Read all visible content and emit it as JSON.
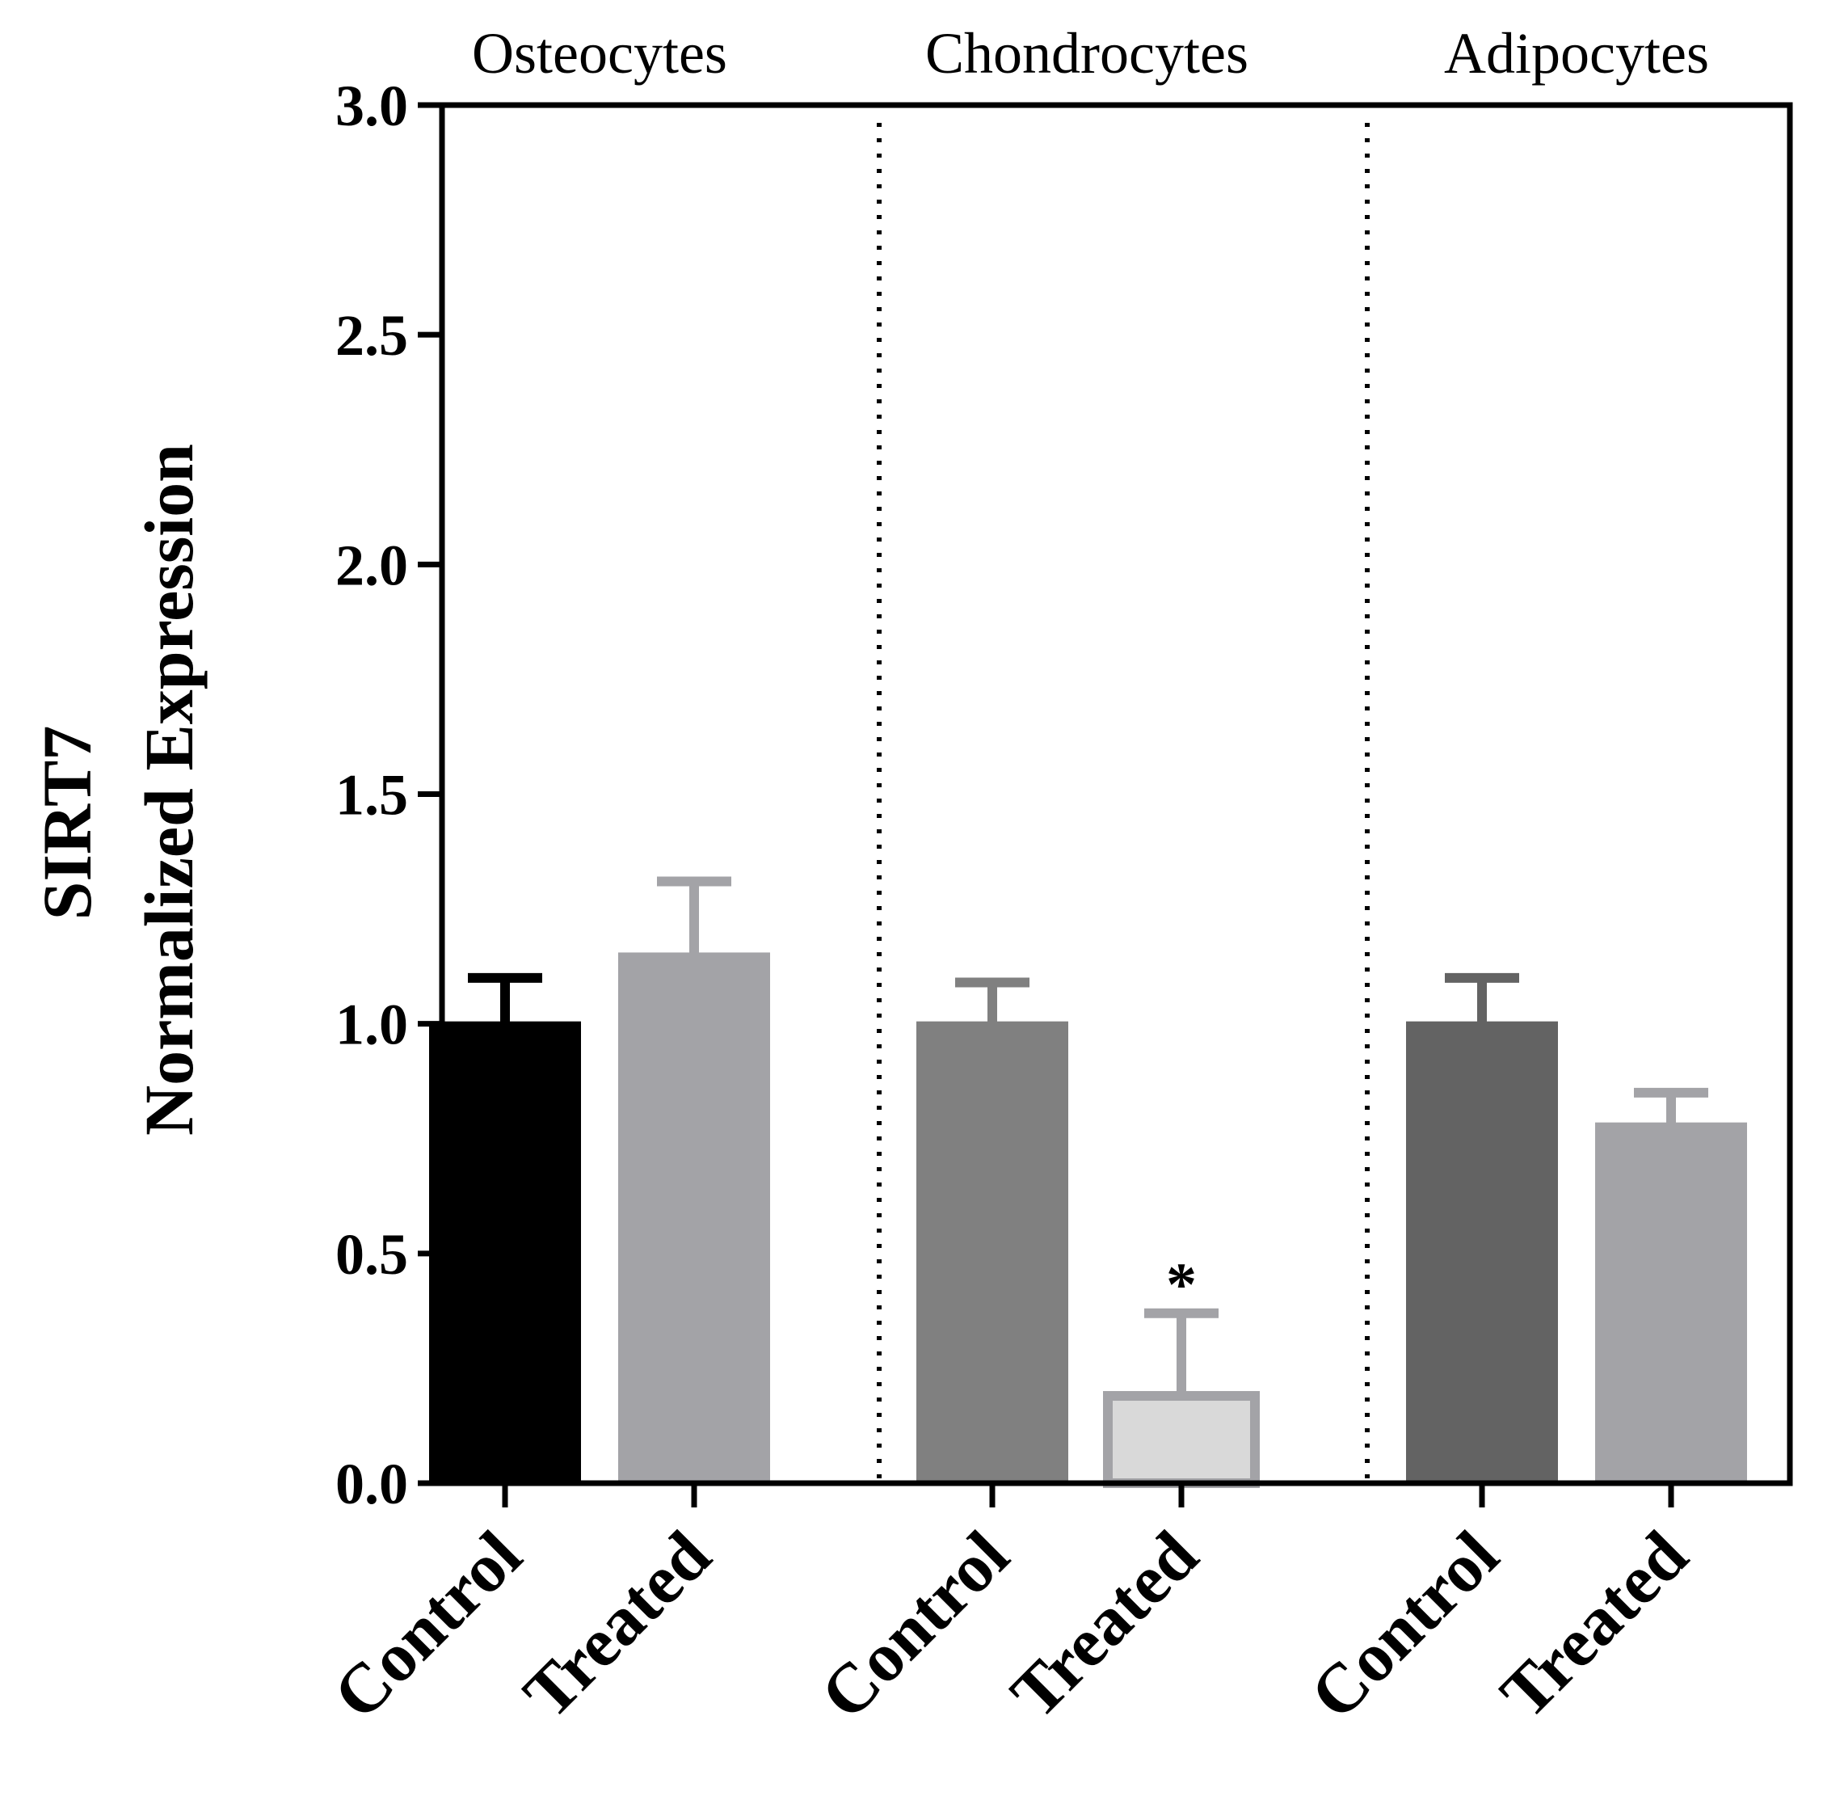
{
  "chart_data": {
    "type": "bar",
    "ylabel_line1": "SIRT7",
    "ylabel_line2": "Normalized Expression",
    "ylim": [
      0,
      3.0
    ],
    "yticks": [
      "0.0",
      "0.5",
      "1.0",
      "1.5",
      "2.0",
      "2.5",
      "3.0"
    ],
    "groups": [
      {
        "name": "Osteocytes",
        "bars": [
          {
            "category": "Control",
            "value": 1.0,
            "error": 0.1,
            "color": "#000000",
            "significance": ""
          },
          {
            "category": "Treated",
            "value": 1.15,
            "error": 0.16,
            "color": "#a3a3a7",
            "significance": ""
          }
        ]
      },
      {
        "name": "Chondrocytes",
        "bars": [
          {
            "category": "Control",
            "value": 1.0,
            "error": 0.09,
            "color": "#808080",
            "significance": ""
          },
          {
            "category": "Treated",
            "value": 0.19,
            "error": 0.18,
            "color": "#d9d9d9",
            "significance": "*"
          }
        ]
      },
      {
        "name": "Adipocytes",
        "bars": [
          {
            "category": "Control",
            "value": 1.0,
            "error": 0.1,
            "color": "#636363",
            "significance": ""
          },
          {
            "category": "Treated",
            "value": 0.78,
            "error": 0.07,
            "color": "#a3a3a7",
            "significance": ""
          }
        ]
      }
    ]
  }
}
